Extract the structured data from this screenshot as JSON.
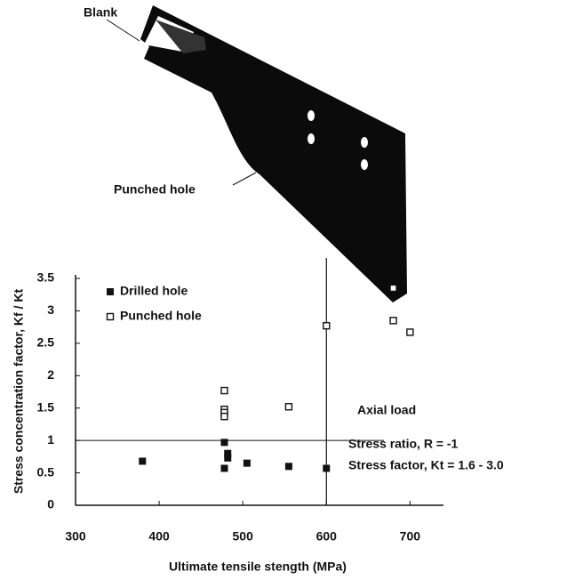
{
  "figure": {
    "labels": [
      "Blank",
      "Punched hole"
    ]
  },
  "chart_data": {
    "type": "scatter",
    "x_label": "Ultimate tensile stength (MPa)",
    "y_label": "Stress concentration factor, Kf / Kt",
    "xlim": [
      300,
      740
    ],
    "ylim": [
      0,
      3.5
    ],
    "xticks": [
      300,
      400,
      500,
      600,
      700
    ],
    "yticks": [
      0,
      0.5,
      1,
      1.5,
      2,
      2.5,
      3,
      3.5
    ],
    "hlines": [
      1
    ],
    "vlines": [
      600
    ],
    "annotations": [
      "Axial load",
      "Stress ratio, R = -1",
      "Stress factor, Kt = 1.6 - 3.0"
    ],
    "series": [
      {
        "name": "Drilled hole",
        "marker": "filled-square",
        "color": "#111111",
        "x": [
          380,
          478,
          478,
          482,
          482,
          505,
          555,
          600
        ],
        "values": [
          0.68,
          0.97,
          0.57,
          0.8,
          0.73,
          0.65,
          0.6,
          0.57
        ]
      },
      {
        "name": "Punched hole",
        "marker": "open-square",
        "color": "#111111",
        "x": [
          478,
          478,
          478,
          478,
          555,
          600,
          680,
          680,
          700
        ],
        "values": [
          1.77,
          1.48,
          1.43,
          1.37,
          1.52,
          2.77,
          3.35,
          2.85,
          2.67
        ]
      }
    ]
  }
}
